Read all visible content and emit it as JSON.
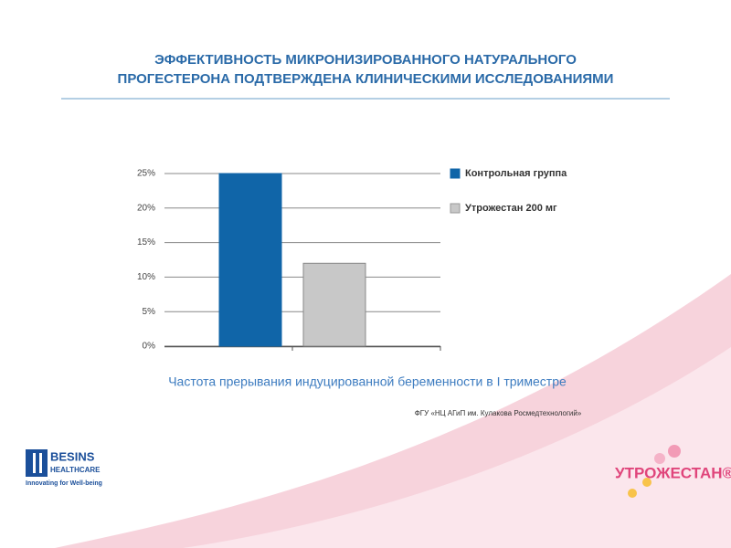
{
  "chart_data": {
    "type": "bar",
    "title": [
      "ЭФФЕКТИВНОСТЬ МИКРОНИЗИРОВАННОГО НАТУРАЛЬНОГО",
      "ПРОГЕСТЕРОНА ПОДТВЕРЖДЕНА КЛИНИЧЕСКИМИ ИССЛЕДОВАНИЯМИ"
    ],
    "subtitle": "Частота прерывания индуцированной беременности в I триместре",
    "source": "ФГУ «НЦ АГиП им. Кулакова Росмедтехнологий»",
    "categories": [
      null
    ],
    "series": [
      {
        "name": "Контрольная группа",
        "color": "#1065a8",
        "values": [
          25
        ]
      },
      {
        "name": "Утрожестан 200 мг",
        "color": "#c8c8c8",
        "values": [
          12
        ]
      }
    ],
    "ylim": [
      0,
      25
    ],
    "yticks": [
      {
        "value": 0,
        "label": "0%"
      },
      {
        "value": 5,
        "label": "5%"
      },
      {
        "value": 10,
        "label": "10%"
      },
      {
        "value": 15,
        "label": "15%"
      },
      {
        "value": 20,
        "label": "20%"
      },
      {
        "value": 25,
        "label": "25%"
      }
    ],
    "grid": true,
    "legend": "right"
  },
  "logos": {
    "besins": [
      "BESINS",
      "HEALTHCARE",
      "Innovating for Well-being"
    ],
    "product": "УТРОЖЕСТАН®"
  }
}
